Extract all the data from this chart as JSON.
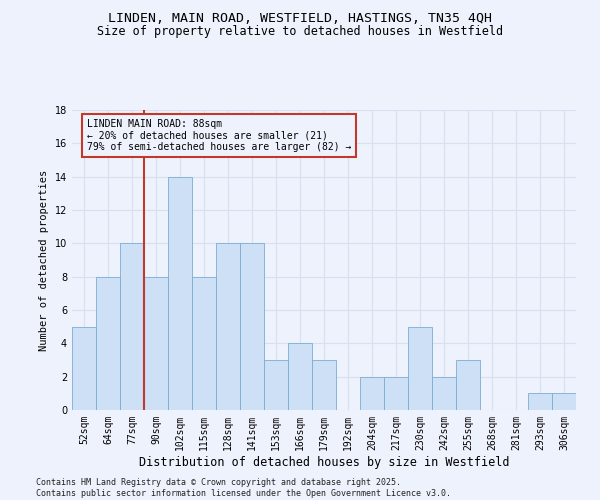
{
  "title": "LINDEN, MAIN ROAD, WESTFIELD, HASTINGS, TN35 4QH",
  "subtitle": "Size of property relative to detached houses in Westfield",
  "xlabel": "Distribution of detached houses by size in Westfield",
  "ylabel": "Number of detached properties",
  "categories": [
    "52sqm",
    "64sqm",
    "77sqm",
    "90sqm",
    "102sqm",
    "115sqm",
    "128sqm",
    "141sqm",
    "153sqm",
    "166sqm",
    "179sqm",
    "192sqm",
    "204sqm",
    "217sqm",
    "230sqm",
    "242sqm",
    "255sqm",
    "268sqm",
    "281sqm",
    "293sqm",
    "306sqm"
  ],
  "values": [
    5,
    8,
    10,
    8,
    14,
    8,
    10,
    10,
    3,
    4,
    3,
    0,
    2,
    2,
    5,
    2,
    3,
    0,
    0,
    1,
    1
  ],
  "bar_color": "#cde0f5",
  "bar_edge_color": "#7aadd4",
  "vline_after_index": 2,
  "vline_color": "#c0392b",
  "annotation_text": "LINDEN MAIN ROAD: 88sqm\n← 20% of detached houses are smaller (21)\n79% of semi-detached houses are larger (82) →",
  "annotation_box_color": "#c0392b",
  "annotation_text_color": "#000000",
  "ylim": [
    0,
    18
  ],
  "yticks": [
    0,
    2,
    4,
    6,
    8,
    10,
    12,
    14,
    16,
    18
  ],
  "background_color": "#eef2fc",
  "grid_color": "#d8dff0",
  "footer": "Contains HM Land Registry data © Crown copyright and database right 2025.\nContains public sector information licensed under the Open Government Licence v3.0.",
  "title_fontsize": 9.5,
  "subtitle_fontsize": 8.5,
  "xlabel_fontsize": 8.5,
  "ylabel_fontsize": 7.5,
  "tick_fontsize": 7,
  "annotation_fontsize": 7,
  "footer_fontsize": 6
}
